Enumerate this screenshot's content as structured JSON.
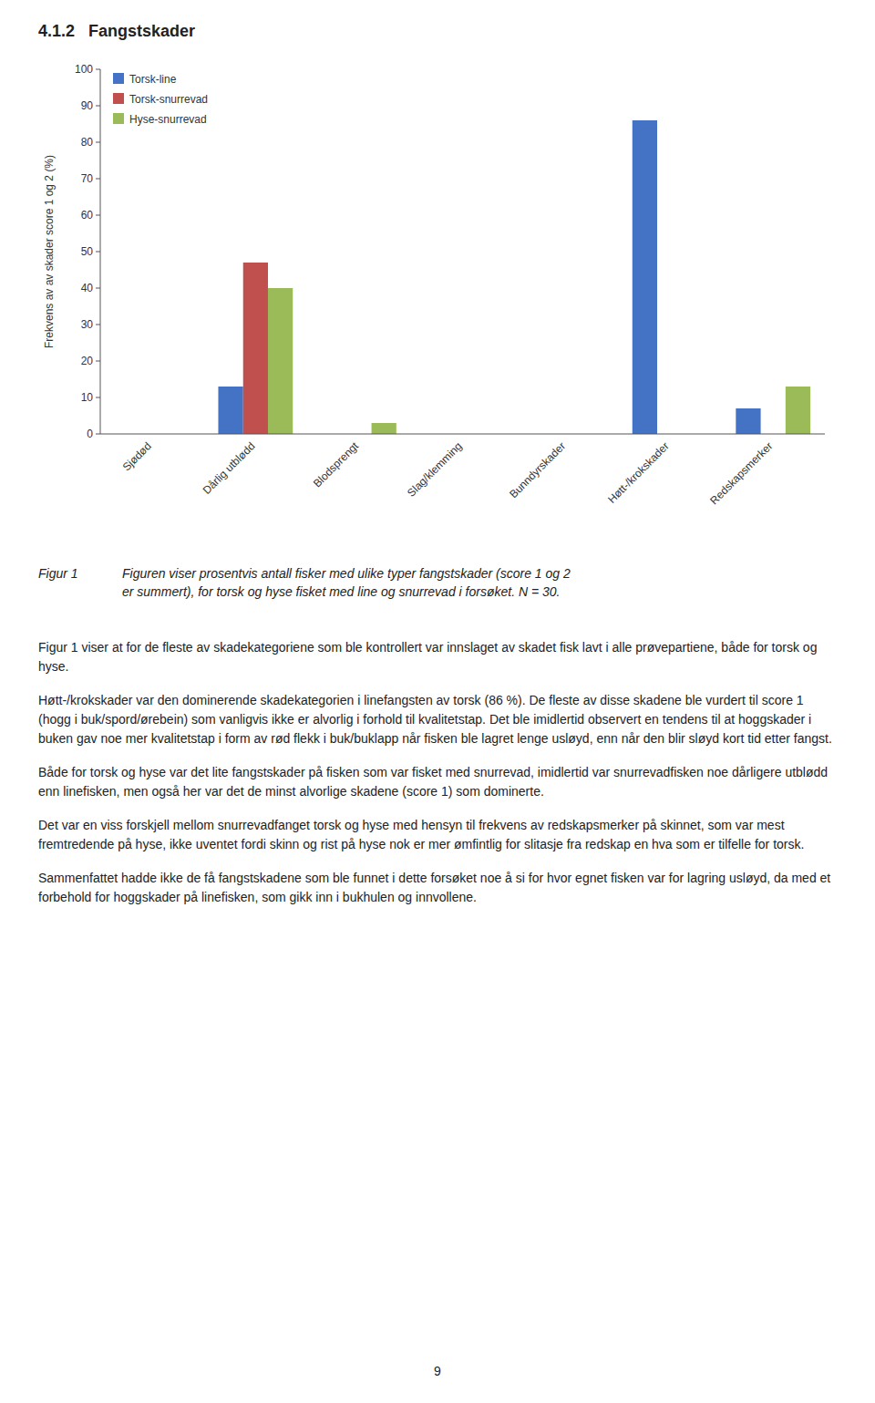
{
  "chart_data": {
    "type": "bar",
    "categories": [
      "Sjødød",
      "Dårlig utblødd",
      "Blodsprengt",
      "Slag/klemming",
      "Bunndyrskader",
      "Høtt-/krokskader",
      "Redskapsmerker"
    ],
    "series": [
      {
        "name": "Torsk-line",
        "color": "#4472C4",
        "values": [
          0,
          13,
          0,
          0,
          0,
          86,
          7
        ]
      },
      {
        "name": "Torsk-snurrevad",
        "color": "#C0504D",
        "values": [
          0,
          47,
          0,
          0,
          0,
          0,
          0
        ]
      },
      {
        "name": "Hyse-snurrevad",
        "color": "#9BBB59",
        "values": [
          0,
          40,
          3,
          0,
          0,
          0,
          13
        ]
      }
    ],
    "ylabel": "Frekvens av av skader score 1 og 2 (%)",
    "ylim": [
      0,
      100
    ],
    "yticks": [
      0,
      10,
      20,
      30,
      40,
      50,
      60,
      70,
      80,
      90,
      100
    ],
    "grid": false,
    "legend": "upper left"
  },
  "heading": "4.1.2   Fangstskader",
  "caption_label": "Figur 1",
  "caption": "Figuren viser prosentvis antall fisker med ulike typer fangstskader (score 1 og 2\ner summert), for torsk og hyse fisket med line og snurrevad i forsøket. N = 30.",
  "paragraphs": [
    "Figur 1 viser at for de fleste av skadekategoriene som ble kontrollert var innslaget av skadet fisk lavt i alle prøvepartiene, både for torsk og hyse.",
    "Høtt-/krokskader var den dominerende skadekategorien i linefangsten av torsk (86 %). De fleste av disse skadene ble vurdert til score 1 (hogg i buk/spord/ørebein) som vanligvis ikke er alvorlig i forhold til kvalitetstap. Det ble imidlertid observert en tendens til at hoggskader i buken gav noe mer kvalitetstap i form av rød flekk i buk/buklapp når fisken ble lagret lenge usløyd, enn når den blir sløyd kort tid etter fangst.",
    "Både for torsk og hyse var det lite fangstskader på fisken som var fisket med snurrevad, imidlertid var snurrevadfisken noe dårligere utblødd enn linefisken, men også her var det de minst alvorlige skadene (score 1) som dominerte.",
    "Det var en viss forskjell mellom snurrevadfanget torsk og hyse med hensyn til frekvens av redskapsmerker på skinnet, som var mest fremtredende på hyse, ikke uventet fordi skinn og rist på hyse nok er mer ømfintlig for slitasje fra redskap en hva som er tilfelle for torsk.",
    "Sammenfattet hadde ikke de få fangstskadene som ble funnet i dette forsøket noe å si for hvor egnet fisken var for lagring usløyd, da med et forbehold for hoggskader på linefisken, som gikk inn i bukhulen og innvollene."
  ],
  "page_number": "9"
}
